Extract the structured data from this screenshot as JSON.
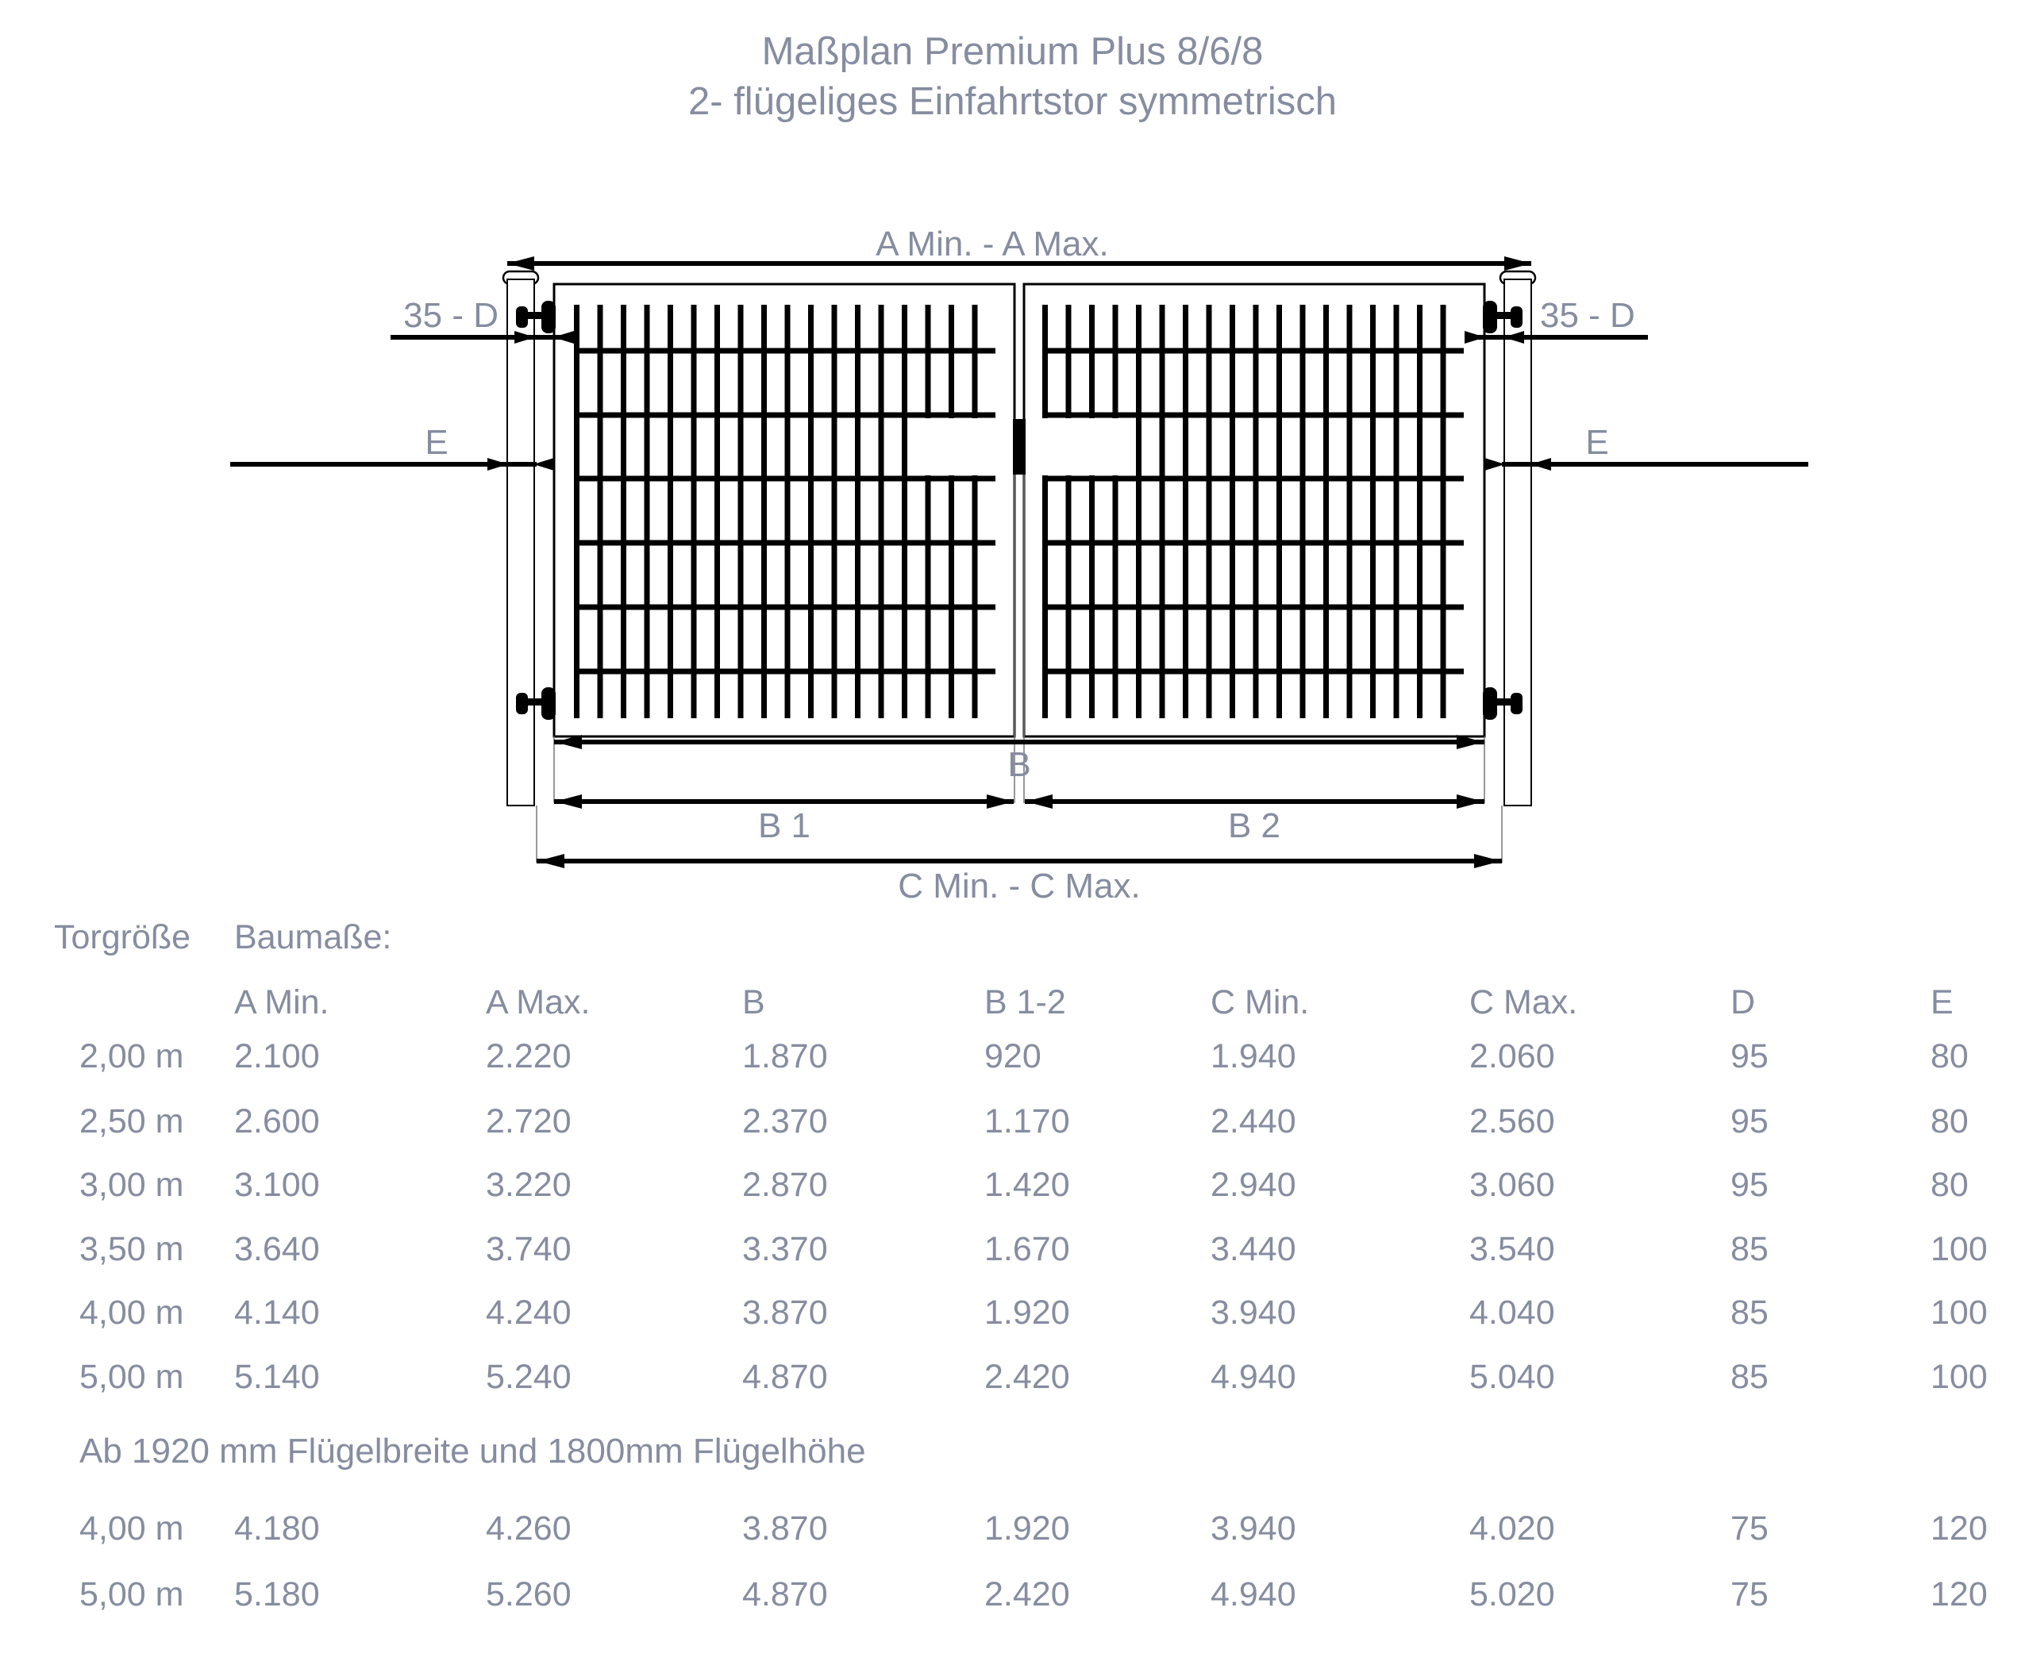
{
  "title": {
    "line1": "Maßplan Premium Plus 8/6/8",
    "line2": "2- flügeliges Einfahrtstor symmetrisch"
  },
  "diagram": {
    "labels": {
      "a_span": "A Min. - A Max.",
      "d_left": "35 - D",
      "d_right": "35 - D",
      "e_left": "E",
      "e_right": "E",
      "b": "B",
      "b1": "B 1",
      "b2": "B 2",
      "c_span": "C Min. - C Max."
    }
  },
  "colors": {
    "label_text": "#868da0",
    "drawing": "#000000",
    "background": "#ffffff"
  },
  "table": {
    "section_label": "Torgröße",
    "sub_label": "Baumaße:",
    "headers": [
      "A Min.",
      "A Max.",
      "B",
      "B 1-2",
      "C Min.",
      "C Max.",
      "D",
      "E"
    ],
    "rows": [
      {
        "size": "2,00 m",
        "values": [
          "2.100",
          "2.220",
          "1.870",
          "920",
          "1.940",
          "2.060",
          "95",
          "80"
        ]
      },
      {
        "size": "2,50 m",
        "values": [
          "2.600",
          "2.720",
          "2.370",
          "1.170",
          "2.440",
          "2.560",
          "95",
          "80"
        ]
      },
      {
        "size": "3,00 m",
        "values": [
          "3.100",
          "3.220",
          "2.870",
          "1.420",
          "2.940",
          "3.060",
          "95",
          "80"
        ]
      },
      {
        "size": "3,50 m",
        "values": [
          "3.640",
          "3.740",
          "3.370",
          "1.670",
          "3.440",
          "3.540",
          "85",
          "100"
        ]
      },
      {
        "size": "4,00 m",
        "values": [
          "4.140",
          "4.240",
          "3.870",
          "1.920",
          "3.940",
          "4.040",
          "85",
          "100"
        ]
      },
      {
        "size": "5,00 m",
        "values": [
          "5.140",
          "5.240",
          "4.870",
          "2.420",
          "4.940",
          "5.040",
          "85",
          "100"
        ]
      }
    ],
    "note": "Ab 1920 mm Flügelbreite und 1800mm Flügelhöhe",
    "rows2": [
      {
        "size": "4,00 m",
        "values": [
          "4.180",
          "4.260",
          "3.870",
          "1.920",
          "3.940",
          "4.020",
          "75",
          "120"
        ]
      },
      {
        "size": "5,00 m",
        "values": [
          "5.180",
          "5.260",
          "4.870",
          "2.420",
          "4.940",
          "5.020",
          "75",
          "120"
        ]
      }
    ]
  }
}
